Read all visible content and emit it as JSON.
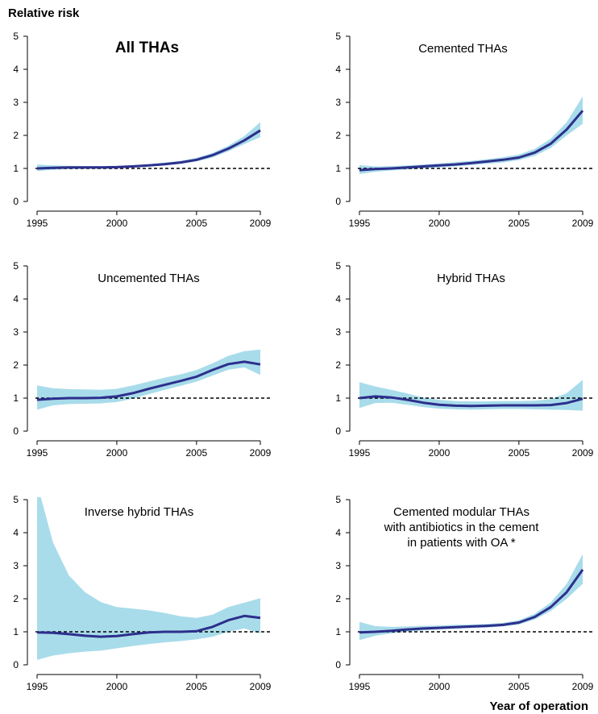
{
  "figure": {
    "ylabel": "Relative risk",
    "xlabel": "Year of operation"
  },
  "colors": {
    "band": "#a8dcea",
    "line": "#2d2f8c",
    "reference": "#000000"
  },
  "chart_data": [
    {
      "type": "line",
      "title": "All THAs",
      "title_bold": true,
      "x": [
        1995,
        1996,
        1997,
        1998,
        1999,
        2000,
        2001,
        2002,
        2003,
        2004,
        2005,
        2006,
        2007,
        2008,
        2009
      ],
      "xticks": [
        1995,
        2000,
        2005,
        2009
      ],
      "yticks": [
        0,
        1,
        2,
        3,
        4,
        5
      ],
      "xlim": [
        1995,
        2009
      ],
      "ylim": [
        0,
        5
      ],
      "reference_line": 1,
      "series": [
        {
          "values": [
            1.0,
            1.02,
            1.03,
            1.03,
            1.03,
            1.04,
            1.06,
            1.09,
            1.13,
            1.18,
            1.26,
            1.4,
            1.6,
            1.85,
            2.15
          ],
          "lower": [
            0.92,
            0.96,
            0.98,
            0.99,
            1.0,
            1.01,
            1.03,
            1.06,
            1.09,
            1.14,
            1.21,
            1.33,
            1.52,
            1.74,
            1.95
          ],
          "upper": [
            1.12,
            1.09,
            1.08,
            1.07,
            1.07,
            1.08,
            1.1,
            1.13,
            1.18,
            1.23,
            1.32,
            1.47,
            1.69,
            1.98,
            2.4
          ]
        }
      ]
    },
    {
      "type": "line",
      "title": "Cemented THAs",
      "title_bold": false,
      "x": [
        1995,
        1996,
        1997,
        1998,
        1999,
        2000,
        2001,
        2002,
        2003,
        2004,
        2005,
        2006,
        2007,
        2008,
        2009
      ],
      "xticks": [
        1995,
        2000,
        2005,
        2009
      ],
      "yticks": [
        0,
        1,
        2,
        3,
        4,
        5
      ],
      "xlim": [
        1995,
        2009
      ],
      "ylim": [
        0,
        5
      ],
      "reference_line": 1,
      "series": [
        {
          "values": [
            0.95,
            0.98,
            1.0,
            1.03,
            1.06,
            1.09,
            1.12,
            1.16,
            1.21,
            1.26,
            1.33,
            1.48,
            1.75,
            2.18,
            2.75
          ],
          "lower": [
            0.83,
            0.9,
            0.94,
            0.97,
            1.0,
            1.03,
            1.06,
            1.1,
            1.14,
            1.18,
            1.25,
            1.38,
            1.62,
            2.0,
            2.35
          ],
          "upper": [
            1.1,
            1.06,
            1.07,
            1.09,
            1.12,
            1.15,
            1.19,
            1.23,
            1.28,
            1.34,
            1.42,
            1.59,
            1.9,
            2.4,
            3.18
          ]
        }
      ]
    },
    {
      "type": "line",
      "title": "Uncemented THAs",
      "title_bold": false,
      "x": [
        1995,
        1996,
        1997,
        1998,
        1999,
        2000,
        2001,
        2002,
        2003,
        2004,
        2005,
        2006,
        2007,
        2008,
        2009
      ],
      "xticks": [
        1995,
        2000,
        2005,
        2009
      ],
      "yticks": [
        0,
        1,
        2,
        3,
        4,
        5
      ],
      "xlim": [
        1995,
        2009
      ],
      "ylim": [
        0,
        5
      ],
      "reference_line": 1,
      "series": [
        {
          "values": [
            0.95,
            0.98,
            1.0,
            1.0,
            1.01,
            1.05,
            1.15,
            1.28,
            1.4,
            1.52,
            1.65,
            1.85,
            2.03,
            2.1,
            2.02
          ],
          "lower": [
            0.65,
            0.78,
            0.82,
            0.83,
            0.84,
            0.88,
            0.98,
            1.12,
            1.25,
            1.37,
            1.5,
            1.68,
            1.86,
            1.93,
            1.7
          ],
          "upper": [
            1.38,
            1.3,
            1.27,
            1.26,
            1.25,
            1.28,
            1.38,
            1.5,
            1.62,
            1.72,
            1.85,
            2.05,
            2.28,
            2.42,
            2.47
          ]
        }
      ]
    },
    {
      "type": "line",
      "title": "Hybrid THAs",
      "title_bold": false,
      "x": [
        1995,
        1996,
        1997,
        1998,
        1999,
        2000,
        2001,
        2002,
        2003,
        2004,
        2005,
        2006,
        2007,
        2008,
        2009
      ],
      "xticks": [
        1995,
        2000,
        2005,
        2009
      ],
      "yticks": [
        0,
        1,
        2,
        3,
        4,
        5
      ],
      "xlim": [
        1995,
        2009
      ],
      "ylim": [
        0,
        5
      ],
      "reference_line": 1,
      "series": [
        {
          "values": [
            1.0,
            1.05,
            1.02,
            0.95,
            0.86,
            0.8,
            0.77,
            0.76,
            0.77,
            0.78,
            0.78,
            0.78,
            0.79,
            0.85,
            0.98
          ],
          "lower": [
            0.7,
            0.85,
            0.86,
            0.8,
            0.73,
            0.68,
            0.66,
            0.65,
            0.66,
            0.67,
            0.67,
            0.66,
            0.65,
            0.64,
            0.62
          ],
          "upper": [
            1.48,
            1.35,
            1.25,
            1.14,
            1.02,
            0.95,
            0.91,
            0.9,
            0.9,
            0.91,
            0.91,
            0.92,
            0.97,
            1.15,
            1.55
          ]
        }
      ]
    },
    {
      "type": "line",
      "title": "Inverse hybrid THAs",
      "title_bold": false,
      "x": [
        1995,
        1996,
        1997,
        1998,
        1999,
        2000,
        2001,
        2002,
        2003,
        2004,
        2005,
        2006,
        2007,
        2008,
        2009
      ],
      "xticks": [
        1995,
        2000,
        2005,
        2009
      ],
      "yticks": [
        0,
        1,
        2,
        3,
        4,
        5
      ],
      "xlim": [
        1995,
        2009
      ],
      "ylim": [
        0,
        5
      ],
      "reference_line": 1,
      "series": [
        {
          "values": [
            0.98,
            0.97,
            0.93,
            0.88,
            0.85,
            0.87,
            0.93,
            0.98,
            1.0,
            1.0,
            1.02,
            1.15,
            1.35,
            1.48,
            1.42
          ],
          "lower": [
            0.15,
            0.28,
            0.35,
            0.4,
            0.43,
            0.5,
            0.57,
            0.63,
            0.68,
            0.72,
            0.77,
            0.85,
            1.0,
            1.1,
            0.95
          ],
          "upper": [
            5.5,
            3.7,
            2.7,
            2.2,
            1.9,
            1.75,
            1.7,
            1.65,
            1.57,
            1.47,
            1.42,
            1.52,
            1.75,
            1.88,
            2.02
          ]
        }
      ]
    },
    {
      "type": "line",
      "title": [
        "Cemented modular THAs",
        "with antibiotics in the cement",
        "in patients with OA *"
      ],
      "title_bold": false,
      "x": [
        1995,
        1996,
        1997,
        1998,
        1999,
        2000,
        2001,
        2002,
        2003,
        2004,
        2005,
        2006,
        2007,
        2008,
        2009
      ],
      "xticks": [
        1995,
        2000,
        2005,
        2009
      ],
      "yticks": [
        0,
        1,
        2,
        3,
        4,
        5
      ],
      "xlim": [
        1995,
        2009
      ],
      "ylim": [
        0,
        5
      ],
      "reference_line": 1,
      "series": [
        {
          "values": [
            0.98,
            1.0,
            1.03,
            1.07,
            1.1,
            1.12,
            1.14,
            1.16,
            1.18,
            1.21,
            1.28,
            1.45,
            1.75,
            2.2,
            2.88
          ],
          "lower": [
            0.75,
            0.88,
            0.95,
            1.0,
            1.04,
            1.07,
            1.09,
            1.11,
            1.13,
            1.16,
            1.22,
            1.37,
            1.63,
            2.0,
            2.45
          ],
          "upper": [
            1.3,
            1.17,
            1.15,
            1.16,
            1.18,
            1.19,
            1.21,
            1.22,
            1.24,
            1.27,
            1.35,
            1.55,
            1.89,
            2.45,
            3.35
          ]
        }
      ]
    }
  ]
}
